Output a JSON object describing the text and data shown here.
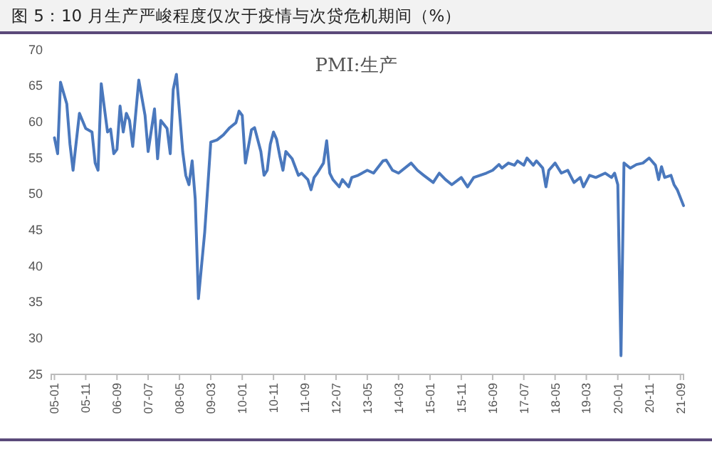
{
  "chart_data": {
    "type": "line",
    "title": "图 5：10 月生产严峻程度仅次于疫情与次贷危机期间（%）",
    "subtitle": "PMI:生产",
    "x": [
      "2005-01",
      "2005-02",
      "2005-03",
      "2005-05",
      "2005-06",
      "2005-07",
      "2005-09",
      "2005-11",
      "2006-01",
      "2006-02",
      "2006-03",
      "2006-04",
      "2006-06",
      "2006-07",
      "2006-08",
      "2006-09",
      "2006-10",
      "2006-11",
      "2006-12",
      "2007-01",
      "2007-02",
      "2007-04",
      "2007-06",
      "2007-07",
      "2007-09",
      "2007-10",
      "2007-11",
      "2008-01",
      "2008-02",
      "2008-03",
      "2008-04",
      "2008-06",
      "2008-07",
      "2008-08",
      "2008-09",
      "2008-10",
      "2008-11",
      "2009-01",
      "2009-03",
      "2009-05",
      "2009-07",
      "2009-09",
      "2009-11",
      "2009-12",
      "2010-01",
      "2010-02",
      "2010-04",
      "2010-05",
      "2010-07",
      "2010-08",
      "2010-09",
      "2010-10",
      "2010-11",
      "2010-12",
      "2011-01",
      "2011-02",
      "2011-03",
      "2011-05",
      "2011-07",
      "2011-08",
      "2011-10",
      "2011-11",
      "2011-12",
      "2012-01",
      "2012-03",
      "2012-04",
      "2012-05",
      "2012-06",
      "2012-08",
      "2012-09",
      "2012-11",
      "2012-12",
      "2013-02",
      "2013-05",
      "2013-07",
      "2013-10",
      "2013-11",
      "2014-01",
      "2014-03",
      "2014-07",
      "2014-09",
      "2014-11",
      "2015-02",
      "2015-04",
      "2015-06",
      "2015-08",
      "2015-11",
      "2016-01",
      "2016-03",
      "2016-05",
      "2016-07",
      "2016-09",
      "2016-11",
      "2016-12",
      "2017-02",
      "2017-04",
      "2017-05",
      "2017-07",
      "2017-08",
      "2017-10",
      "2017-11",
      "2018-01",
      "2018-02",
      "2018-03",
      "2018-05",
      "2018-07",
      "2018-09",
      "2018-11",
      "2019-01",
      "2019-02",
      "2019-04",
      "2019-06",
      "2019-09",
      "2019-11",
      "2019-12",
      "2020-01",
      "2020-02",
      "2020-03",
      "2020-05",
      "2020-07",
      "2020-09",
      "2020-11",
      "2021-01",
      "2021-02",
      "2021-03",
      "2021-04",
      "2021-06",
      "2021-07",
      "2021-08",
      "2021-10"
    ],
    "series": [
      {
        "color": "#4a78bd",
        "values": [
          57.8,
          55.6,
          65.5,
          62.5,
          56.9,
          53.3,
          61.2,
          59.1,
          58.6,
          54.3,
          53.3,
          65.3,
          58.6,
          59,
          55.6,
          56.2,
          62.2,
          58.6,
          61.2,
          60.2,
          56.6,
          65.8,
          60.9,
          55.9,
          61.8,
          54.9,
          60.2,
          59.1,
          55.6,
          64.5,
          66.6,
          55.9,
          52.6,
          51.3,
          54.6,
          49.3,
          35.5,
          44.7,
          57.2,
          57.5,
          58.2,
          59.2,
          59.9,
          61.5,
          60.9,
          54.3,
          58.9,
          59.2,
          55.9,
          52.6,
          53.3,
          56.9,
          58.6,
          57.6,
          55.3,
          53.3,
          55.9,
          54.9,
          52.6,
          52.9,
          52,
          50.6,
          52.3,
          52.9,
          54.3,
          57.4,
          52.9,
          52,
          51,
          52,
          51,
          52.3,
          52.6,
          53.3,
          52.9,
          54.6,
          54.7,
          53.3,
          52.9,
          54.3,
          53.3,
          52.6,
          51.6,
          52.9,
          52,
          51.3,
          52.3,
          51,
          52.3,
          52.6,
          52.9,
          53.3,
          54.1,
          53.6,
          54.3,
          54,
          54.6,
          54,
          55,
          54,
          54.6,
          53.6,
          51,
          53.3,
          54.3,
          52.9,
          53.3,
          51.6,
          52.3,
          51,
          52.6,
          52.3,
          52.9,
          52.3,
          52.9,
          51.3,
          27.6,
          54.3,
          53.6,
          54.1,
          54.3,
          55,
          54,
          52,
          53.8,
          52.3,
          52.6,
          51.3,
          50.6,
          48.4
        ]
      }
    ],
    "xlim": [
      "2004-12",
      "2021-10"
    ],
    "xticks": [
      {
        "value": "2005-01",
        "label": "05-01"
      },
      {
        "value": "2005-11",
        "label": "05-11"
      },
      {
        "value": "2006-09",
        "label": "06-09"
      },
      {
        "value": "2007-07",
        "label": "07-07"
      },
      {
        "value": "2008-05",
        "label": "08-05"
      },
      {
        "value": "2009-03",
        "label": "09-03"
      },
      {
        "value": "2010-01",
        "label": "10-01"
      },
      {
        "value": "2010-11",
        "label": "10-11"
      },
      {
        "value": "2011-09",
        "label": "11-09"
      },
      {
        "value": "2012-07",
        "label": "12-07"
      },
      {
        "value": "2013-05",
        "label": "13-05"
      },
      {
        "value": "2014-03",
        "label": "14-03"
      },
      {
        "value": "2015-01",
        "label": "15-01"
      },
      {
        "value": "2015-11",
        "label": "15-11"
      },
      {
        "value": "2016-09",
        "label": "16-09"
      },
      {
        "value": "2017-07",
        "label": "17-07"
      },
      {
        "value": "2018-05",
        "label": "18-05"
      },
      {
        "value": "2019-03",
        "label": "19-03"
      },
      {
        "value": "2020-01",
        "label": "20-01"
      },
      {
        "value": "2020-11",
        "label": "20-11"
      },
      {
        "value": "2021-09",
        "label": "21-09"
      }
    ],
    "ylim": [
      25,
      70
    ],
    "yticks": [
      25,
      30,
      35,
      40,
      45,
      50,
      55,
      60,
      65,
      70
    ],
    "grid": false,
    "marker": "none",
    "line_style": "solid"
  }
}
